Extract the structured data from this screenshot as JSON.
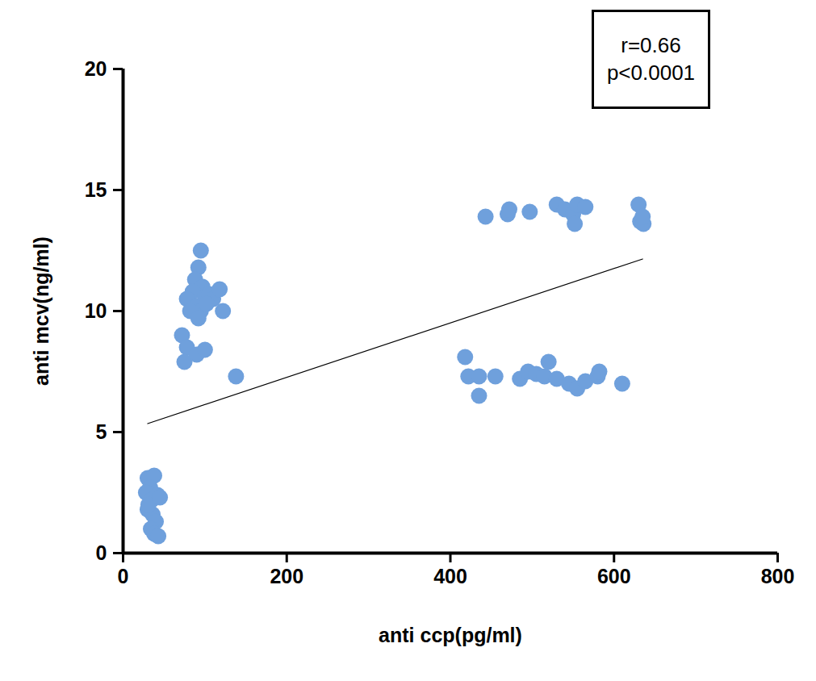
{
  "chart_data": {
    "type": "scatter",
    "x_label": "anti ccp(pg/ml)",
    "y_label": "anti mcv(ng/ml)",
    "annotations": [
      "r=0.66",
      "p<0.0001"
    ],
    "color": "#6fa0dc",
    "grid": false,
    "xlim": [
      0,
      800
    ],
    "xticks": [
      0,
      200,
      400,
      600,
      800
    ],
    "ylim": [
      0,
      20
    ],
    "yticks": [
      0,
      5,
      10,
      15,
      20
    ],
    "x": [
      30,
      38,
      33,
      28,
      35,
      42,
      30,
      36,
      40,
      34,
      38,
      43,
      31,
      45,
      95,
      92,
      88,
      97,
      85,
      100,
      78,
      105,
      90,
      95,
      82,
      110,
      118,
      122,
      72,
      78,
      75,
      90,
      100,
      138,
      92,
      102,
      443,
      470,
      472,
      497,
      530,
      540,
      550,
      552,
      555,
      565,
      630,
      632,
      636,
      635,
      418,
      422,
      435,
      435,
      455,
      485,
      495,
      505,
      515,
      520,
      530,
      545,
      555,
      565,
      580,
      582,
      610
    ],
    "y": [
      3.1,
      3.2,
      2.7,
      2.5,
      2.2,
      2.4,
      1.8,
      1.6,
      1.3,
      1.0,
      0.8,
      0.7,
      2.0,
      2.3,
      12.5,
      11.8,
      11.3,
      11.0,
      10.8,
      10.6,
      10.5,
      10.7,
      10.2,
      10.0,
      10.0,
      10.5,
      10.9,
      10.0,
      9.0,
      8.5,
      7.9,
      8.2,
      8.4,
      7.3,
      9.7,
      10.3,
      13.9,
      14.0,
      14.2,
      14.1,
      14.4,
      14.2,
      14.0,
      13.6,
      14.4,
      14.3,
      14.4,
      13.7,
      13.6,
      13.9,
      8.1,
      7.3,
      7.3,
      6.5,
      7.3,
      7.2,
      7.5,
      7.4,
      7.3,
      7.9,
      7.2,
      7.0,
      6.8,
      7.1,
      7.3,
      7.5,
      7.0
    ],
    "fit_line": {
      "x": [
        30,
        635
      ],
      "y": [
        5.35,
        12.15
      ]
    }
  }
}
